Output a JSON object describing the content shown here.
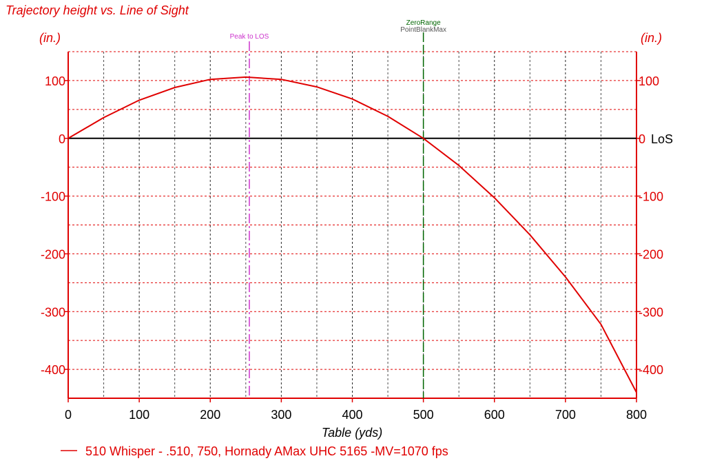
{
  "chart_data": {
    "type": "line",
    "title": "Trajectory height vs. Line of Sight",
    "ylabel_left": "(in.)",
    "ylabel_right": "(in.)",
    "xlabel": "Table (yds)",
    "xlim": [
      0,
      800
    ],
    "ylim": [
      -450,
      150
    ],
    "x_ticks": [
      0,
      100,
      200,
      300,
      400,
      500,
      600,
      700,
      800
    ],
    "y_ticks": [
      100,
      0,
      -100,
      -200,
      -300,
      -400
    ],
    "grid": true,
    "los_label": "LoS",
    "markers": [
      {
        "label": "Peak to LOS",
        "x": 255,
        "color": "#cc33cc"
      },
      {
        "label": "ZeroRange",
        "x": 500,
        "color": "#006600"
      },
      {
        "label": "PointBlankMax",
        "x": 500,
        "color": "#555555"
      }
    ],
    "series": [
      {
        "name": "510 Whisper - .510, 750, Hornady AMax UHC 5165 -MV=1070 fps",
        "color": "#e00000",
        "x": [
          0,
          50,
          100,
          150,
          200,
          250,
          300,
          350,
          400,
          450,
          500,
          550,
          600,
          650,
          700,
          750,
          800
        ],
        "y": [
          0,
          36,
          66,
          88,
          102,
          106,
          102,
          89,
          68,
          38,
          0,
          -47,
          -103,
          -167,
          -240,
          -322,
          -440
        ]
      }
    ],
    "legend_position": "bottom-left"
  }
}
